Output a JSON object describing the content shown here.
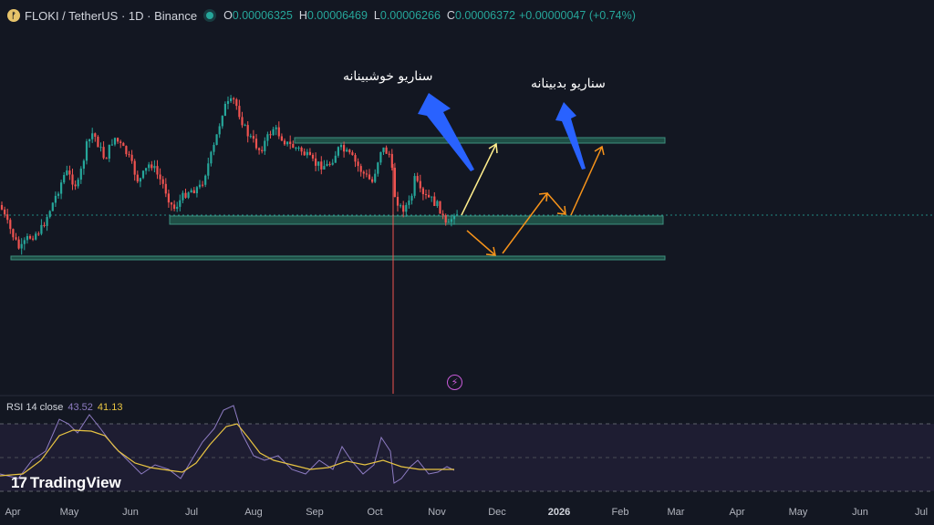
{
  "header": {
    "symbol": "FLOKI / TetherUS · 1D · Binance",
    "open_label": "O",
    "open": "0.00006325",
    "high_label": "H",
    "high": "0.00006469",
    "low_label": "L",
    "low": "0.00006266",
    "close_label": "C",
    "close": "0.00006372",
    "change": "+0.00000047 (+0.74%)"
  },
  "annotations": {
    "bullish": "سناریو خوشبینانه",
    "bearish": "سناریو بدبینانه"
  },
  "rsi": {
    "name": "RSI 14 close",
    "value": "43.52",
    "ma_value": "41.13"
  },
  "brand": {
    "name": "TradingView",
    "mark": "17"
  },
  "x_axis": {
    "ticks": [
      "Apr",
      "May",
      "Jun",
      "Jul",
      "Aug",
      "Sep",
      "Oct",
      "Nov",
      "Dec",
      "2026",
      "Feb",
      "Mar",
      "Apr",
      "May",
      "Jun",
      "Jul"
    ]
  },
  "colors": {
    "background": "#131722",
    "up": "#26a69a",
    "down": "#ef5350",
    "zone": "#1f4f46",
    "arrow_blue": "#2962ff",
    "arrow_orange": "#f7931a",
    "arrow_yellow": "#ffee8c",
    "rsi": "#8e7cc3",
    "rsi_ma": "#e8c442"
  },
  "icons": [
    "floki-logo-icon",
    "market-status-dot-icon",
    "flash-icon",
    "tradingview-logo-icon"
  ]
}
